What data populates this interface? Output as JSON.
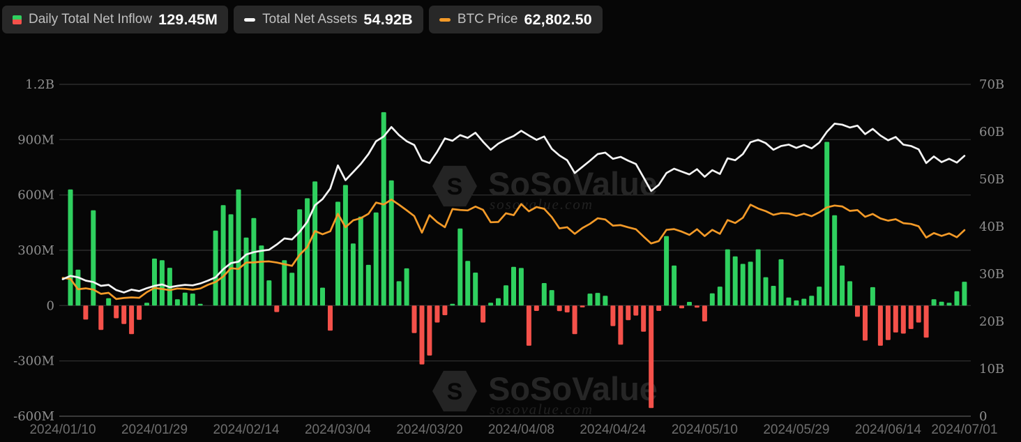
{
  "legend": {
    "items": [
      {
        "label": "Daily Total Net Inflow",
        "value": "129.45M",
        "icon": "bar-up-down-icon"
      },
      {
        "label": "Total Net Assets",
        "value": "54.92B",
        "icon": "white-dash-icon"
      },
      {
        "label": "BTC Price",
        "value": "62,802.50",
        "icon": "orange-dash-icon"
      }
    ]
  },
  "watermark": {
    "brand": "SoSoValue",
    "domain": "sosovalue.com",
    "logo": "sosovalue-cube-logo"
  },
  "colors": {
    "background": "#060606",
    "inflow_positive": "#2fd05f",
    "inflow_negative": "#f4514a",
    "net_assets_line": "#f5f5f5",
    "btc_price_line": "#f39a28",
    "gridline": "#2b2b2b",
    "axis_line": "#3a3a3a",
    "y_label": "#8f8f8f",
    "x_label": "#6e6e6e"
  },
  "axes": {
    "left_labels": [
      "1.2B",
      "900M",
      "600M",
      "300M",
      "0",
      "-300M",
      "-600M"
    ],
    "right_labels": [
      "70B",
      "60B",
      "50B",
      "40B",
      "30B",
      "20B",
      "10B",
      "0"
    ],
    "x_labels": [
      "2024/01/10",
      "2024/01/29",
      "2024/02/14",
      "2024/03/04",
      "2024/03/20",
      "2024/04/08",
      "2024/04/24",
      "2024/05/10",
      "2024/05/29",
      "2024/06/14",
      "2024/07/01"
    ],
    "x_tick_indices": [
      0,
      12,
      24,
      36,
      48,
      60,
      72,
      84,
      96,
      108,
      118
    ]
  },
  "chart_data": {
    "type": "bar+line combo",
    "title": "",
    "grid": "horizontal-only",
    "legend_position": "top-left",
    "left_ylim_M": [
      -600,
      1200
    ],
    "right_ylim_B": [
      0,
      70
    ],
    "btc_hidden_ylim_USD": [
      0,
      112000
    ],
    "x": [
      "2024/01/10",
      "2024/01/11",
      "2024/01/12",
      "2024/01/16",
      "2024/01/17",
      "2024/01/18",
      "2024/01/19",
      "2024/01/22",
      "2024/01/23",
      "2024/01/24",
      "2024/01/25",
      "2024/01/26",
      "2024/01/29",
      "2024/01/30",
      "2024/01/31",
      "2024/02/01",
      "2024/02/02",
      "2024/02/05",
      "2024/02/06",
      "2024/02/07",
      "2024/02/08",
      "2024/02/09",
      "2024/02/12",
      "2024/02/13",
      "2024/02/14",
      "2024/02/15",
      "2024/02/16",
      "2024/02/20",
      "2024/02/21",
      "2024/02/22",
      "2024/02/23",
      "2024/02/26",
      "2024/02/27",
      "2024/02/28",
      "2024/02/29",
      "2024/03/01",
      "2024/03/04",
      "2024/03/05",
      "2024/03/06",
      "2024/03/07",
      "2024/03/08",
      "2024/03/11",
      "2024/03/12",
      "2024/03/13",
      "2024/03/14",
      "2024/03/15",
      "2024/03/18",
      "2024/03/19",
      "2024/03/20",
      "2024/03/21",
      "2024/03/22",
      "2024/03/25",
      "2024/03/26",
      "2024/03/27",
      "2024/03/28",
      "2024/04/01",
      "2024/04/02",
      "2024/04/03",
      "2024/04/04",
      "2024/04/05",
      "2024/04/08",
      "2024/04/09",
      "2024/04/10",
      "2024/04/11",
      "2024/04/12",
      "2024/04/15",
      "2024/04/16",
      "2024/04/17",
      "2024/04/18",
      "2024/04/19",
      "2024/04/22",
      "2024/04/23",
      "2024/04/24",
      "2024/04/25",
      "2024/04/26",
      "2024/04/29",
      "2024/04/30",
      "2024/05/01",
      "2024/05/02",
      "2024/05/03",
      "2024/05/06",
      "2024/05/07",
      "2024/05/08",
      "2024/05/09",
      "2024/05/10",
      "2024/05/13",
      "2024/05/14",
      "2024/05/15",
      "2024/05/16",
      "2024/05/17",
      "2024/05/20",
      "2024/05/21",
      "2024/05/22",
      "2024/05/23",
      "2024/05/24",
      "2024/05/28",
      "2024/05/29",
      "2024/05/30",
      "2024/05/31",
      "2024/06/03",
      "2024/06/04",
      "2024/06/05",
      "2024/06/06",
      "2024/06/07",
      "2024/06/10",
      "2024/06/11",
      "2024/06/12",
      "2024/06/13",
      "2024/06/14",
      "2024/06/17",
      "2024/06/18",
      "2024/06/20",
      "2024/06/21",
      "2024/06/24",
      "2024/06/25",
      "2024/06/26",
      "2024/06/27",
      "2024/06/28",
      "2024/07/01"
    ],
    "series": [
      {
        "name": "Daily Total Net Inflow",
        "type": "bar",
        "axis": "left",
        "unit": "M USD",
        "values": [
          0,
          630,
          195,
          -76,
          517,
          -132,
          40,
          -69,
          -100,
          -155,
          -77,
          15,
          255,
          246,
          205,
          34,
          70,
          65,
          10,
          0,
          407,
          545,
          495,
          630,
          369,
          475,
          326,
          137,
          -35,
          246,
          178,
          522,
          582,
          673,
          97,
          -136,
          563,
          654,
          337,
          482,
          221,
          505,
          1049,
          679,
          132,
          202,
          -149,
          -319,
          -271,
          -92,
          -52,
          10,
          418,
          242,
          179,
          -92,
          15,
          40,
          110,
          210,
          204,
          -218,
          -29,
          122,
          84,
          -30,
          -37,
          -155,
          -10,
          65,
          69,
          53,
          -111,
          -212,
          -79,
          -54,
          -142,
          -556,
          -29,
          377,
          217,
          -15,
          20,
          -11,
          -86,
          66,
          103,
          305,
          267,
          226,
          238,
          305,
          154,
          107,
          251,
          44,
          28,
          37,
          53,
          103,
          888,
          490,
          217,
          132,
          -61,
          -190,
          100,
          -218,
          -187,
          -146,
          -152,
          -127,
          -92,
          -174,
          34,
          21,
          15,
          78,
          129.45
        ]
      },
      {
        "name": "Total Net Assets",
        "type": "line",
        "axis": "right",
        "unit": "B USD",
        "values": [
          28.9,
          29.6,
          29.3,
          28.6,
          28.3,
          27.5,
          27.7,
          26.6,
          26.1,
          26.7,
          26.4,
          27.0,
          27.5,
          27.8,
          27.2,
          27.5,
          27.7,
          27.6,
          28.0,
          28.6,
          29.3,
          31.0,
          32.3,
          32.6,
          34.1,
          34.6,
          34.9,
          35.1,
          36.2,
          37.5,
          37.3,
          38.9,
          41.0,
          44.5,
          45.8,
          48.0,
          52.9,
          49.8,
          51.5,
          53.2,
          55.3,
          58.0,
          59.0,
          61.0,
          59.3,
          58.0,
          57.2,
          54.0,
          53.4,
          55.8,
          58.6,
          58.1,
          59.3,
          58.7,
          59.8,
          57.9,
          56.2,
          57.5,
          58.4,
          59.1,
          60.2,
          59.2,
          58.3,
          59.0,
          56.4,
          55.0,
          54.0,
          51.3,
          52.6,
          53.9,
          55.3,
          55.6,
          54.3,
          54.7,
          53.9,
          53.2,
          50.4,
          47.5,
          48.8,
          51.3,
          52.2,
          51.6,
          51.0,
          52.1,
          50.5,
          51.9,
          51.1,
          54.4,
          54.0,
          55.3,
          57.8,
          58.3,
          57.6,
          56.2,
          57.0,
          57.3,
          56.6,
          57.2,
          56.5,
          57.7,
          60.0,
          61.7,
          61.5,
          60.9,
          61.3,
          59.5,
          60.6,
          59.2,
          58.2,
          58.9,
          57.3,
          57.0,
          56.3,
          53.4,
          54.8,
          53.6,
          54.3,
          53.5,
          54.92
        ]
      },
      {
        "name": "BTC Price",
        "type": "line",
        "axis": "hidden",
        "unit": "USD",
        "values": [
          46650,
          46350,
          42850,
          43150,
          42750,
          41300,
          41650,
          39550,
          39900,
          40100,
          39950,
          41850,
          43300,
          42950,
          42550,
          43100,
          43000,
          42700,
          43100,
          44350,
          45300,
          47150,
          49950,
          49700,
          51850,
          51900,
          52150,
          52250,
          51850,
          51300,
          50750,
          54500,
          57050,
          62500,
          61400,
          62400,
          68300,
          63800,
          66100,
          66850,
          68300,
          72100,
          71450,
          73100,
          71400,
          69500,
          67550,
          61950,
          67850,
          65500,
          63800,
          69900,
          69600,
          69450,
          70750,
          69650,
          65450,
          65550,
          68500,
          67850,
          71600,
          69150,
          70600,
          70000,
          67200,
          63400,
          63800,
          61550,
          63500,
          64950,
          66800,
          66400,
          64300,
          64500,
          63750,
          63100,
          60650,
          58300,
          59100,
          62900,
          63150,
          62300,
          61200,
          63100,
          60800,
          62900,
          61550,
          66200,
          65200,
          67000,
          71400,
          70100,
          69200,
          67950,
          68550,
          68400,
          67600,
          68350,
          67500,
          68800,
          70500,
          71100,
          70800,
          69300,
          69550,
          67300,
          68250,
          66750,
          66000,
          66500,
          65150,
          64900,
          64100,
          60300,
          61800,
          60850,
          61700,
          60400,
          62802.5
        ]
      }
    ]
  }
}
